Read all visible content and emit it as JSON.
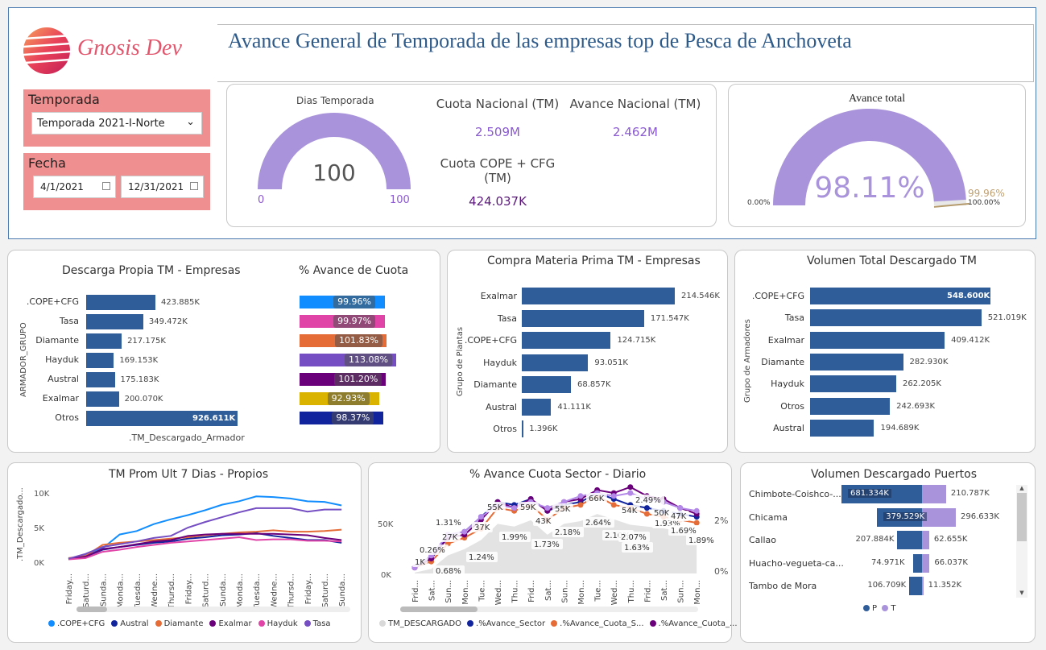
{
  "header": {
    "logo_text": "Gnosis Dev",
    "title": "Avance General de Temporada de las empresas top de Pesca de Anchoveta"
  },
  "filters": {
    "season_label": "Temporada",
    "season_value": "Temporada 2021-I-Norte",
    "date_label": "Fecha",
    "date_from": "4/1/2021",
    "date_to": "12/31/2021"
  },
  "kpis": {
    "dias_label": "Dias Temporada",
    "dias_value": "100",
    "dias_min": "0",
    "dias_max": "100",
    "cuota_nac_label": "Cuota Nacional (TM)",
    "cuota_nac_value": "2.509M",
    "avance_nac_label": "Avance Nacional (TM)",
    "avance_nac_value": "2.462M",
    "cuota_cope_label": "Cuota COPE + CFG (TM)",
    "cuota_cope_value": "424.037K",
    "avance_total_label": "Avance total",
    "avance_total_value": "98.11%",
    "avance_min": "0.00%",
    "avance_max": "100.00%",
    "avance_target": "99.96%",
    "avance_fraction": 0.9811
  },
  "descarga": {
    "title": "Descarga Propia TM - Empresas",
    "ylabel": "ARMADOR_GRUPO",
    "xlabel": ".TM_Descargado_Armador",
    "cats": [
      ".COPE+CFG",
      "Tasa",
      "Diamante",
      "Hayduk",
      "Austral",
      "Exalmar",
      "Otros"
    ],
    "values": [
      423.885,
      349.472,
      217.175,
      169.153,
      175.183,
      200.07,
      926.611
    ],
    "labels": [
      "423.885K",
      "349.472K",
      "217.175K",
      "169.153K",
      "175.183K",
      "200.070K",
      "926.611K"
    ],
    "pct_title": "% Avance de Cuota",
    "pct_labels": [
      "99.96%",
      "99.97%",
      "101.83%",
      "113.08%",
      "101.20%",
      "92.93%",
      "98.37%"
    ],
    "pct_values": [
      99.96,
      99.97,
      101.83,
      113.08,
      101.2,
      92.93,
      98.37
    ],
    "pct_colors": [
      "#118dff",
      "#e044a7",
      "#e66c37",
      "#744ec2",
      "#6b007b",
      "#d9b300",
      "#12239e"
    ]
  },
  "compra": {
    "title": "Compra Materia Prima TM - Empresas",
    "ylabel": "Grupo de Plantas",
    "cats": [
      "Exalmar",
      "Tasa",
      ".COPE+CFG",
      "Hayduk",
      "Diamante",
      "Austral",
      "Otros"
    ],
    "values": [
      214.546,
      171.547,
      124.715,
      93.051,
      68.857,
      41.111,
      1.396
    ],
    "labels": [
      "214.546K",
      "171.547K",
      "124.715K",
      "93.051K",
      "68.857K",
      "41.111K",
      "1.396K"
    ]
  },
  "volumen": {
    "title": "Volumen Total Descargado TM",
    "ylabel": "Grupo de Armadores",
    "cats": [
      ".COPE+CFG",
      "Tasa",
      "Exalmar",
      "Diamante",
      "Hayduk",
      "Otros",
      "Austral"
    ],
    "values": [
      548.6,
      521.019,
      409.412,
      282.93,
      262.205,
      242.693,
      194.689
    ],
    "labels": [
      "548.600K",
      "521.019K",
      "409.412K",
      "282.930K",
      "262.205K",
      "242.693K",
      "194.689K"
    ]
  },
  "prom": {
    "title": "TM Prom Ult 7 Dias - Propios",
    "ylabel": ".TM_Descargado...",
    "yticks": [
      "10K",
      "5K",
      "0K"
    ],
    "xticks": [
      "Friday...",
      "Saturd...",
      "Sunda...",
      "Monda...",
      "Tuesda...",
      "Wedne...",
      "Thursd...",
      "Friday...",
      "Saturd...",
      "Sunda...",
      "Monda...",
      "Tuesda...",
      "Wedne...",
      "Thursd...",
      "Friday...",
      "Saturd...",
      "Sunda..."
    ],
    "legend": [
      ".COPE+CFG",
      "Austral",
      "Diamante",
      "Exalmar",
      "Hayduk",
      "Tasa"
    ],
    "colors": [
      "#118dff",
      "#12239e",
      "#e66c37",
      "#6b007b",
      "#e044a7",
      "#744ec2"
    ]
  },
  "sector": {
    "title": "% Avance Cuota Sector - Diario",
    "yticks_left": [
      "50K",
      "0K"
    ],
    "yticks_right": [
      "2%",
      "0%"
    ],
    "xticks": [
      "Frid...",
      "Sat...",
      "Sun...",
      "Mon...",
      "Tue...",
      "Wed...",
      "Thu...",
      "Frid...",
      "Sat...",
      "Sun...",
      "Mon...",
      "Tue...",
      "Wed...",
      "Thu...",
      "Frid...",
      "Sat...",
      "Sun...",
      "Mon..."
    ],
    "annotations": [
      "1K",
      "0.26%",
      "0.68%",
      "1.31%",
      "27K",
      "1.24%",
      "37K",
      "55K",
      "1.99%",
      "59K",
      "43K",
      "1.73%",
      "55K",
      "2.18%",
      "66K",
      "2.64%",
      "2.10%",
      "54K",
      "2.07%",
      "1.63%",
      "2.49%",
      "50K",
      "1.93%",
      "47K",
      "1.69%",
      "1.89%"
    ],
    "legend": [
      "TM_DESCARGADO",
      ".%Avance_Sector",
      ".%Avance_Cuota_S...",
      ".%Avance_Cuota_..."
    ],
    "legend_colors": [
      "#d9d9d9",
      "#12239e",
      "#e66c37",
      "#6b007b"
    ]
  },
  "puertos": {
    "title": "Volumen Descargado Puertos",
    "cats": [
      "Chimbote-Coishco-...",
      "Chicama",
      "Callao",
      "Huacho-vegueta-ca...",
      "Tambo de Mora"
    ],
    "p_values": [
      681.334,
      379.529,
      207.884,
      74.971,
      106.709
    ],
    "t_values": [
      210.787,
      296.633,
      62.655,
      66.037,
      11.352
    ],
    "p_labels": [
      "681.334K",
      "379.529K",
      "207.884K",
      "74.971K",
      "106.709K"
    ],
    "t_labels": [
      "210.787K",
      "296.633K",
      "62.655K",
      "66.037K",
      "11.352K"
    ],
    "legend_p": "P",
    "legend_t": "T"
  }
}
